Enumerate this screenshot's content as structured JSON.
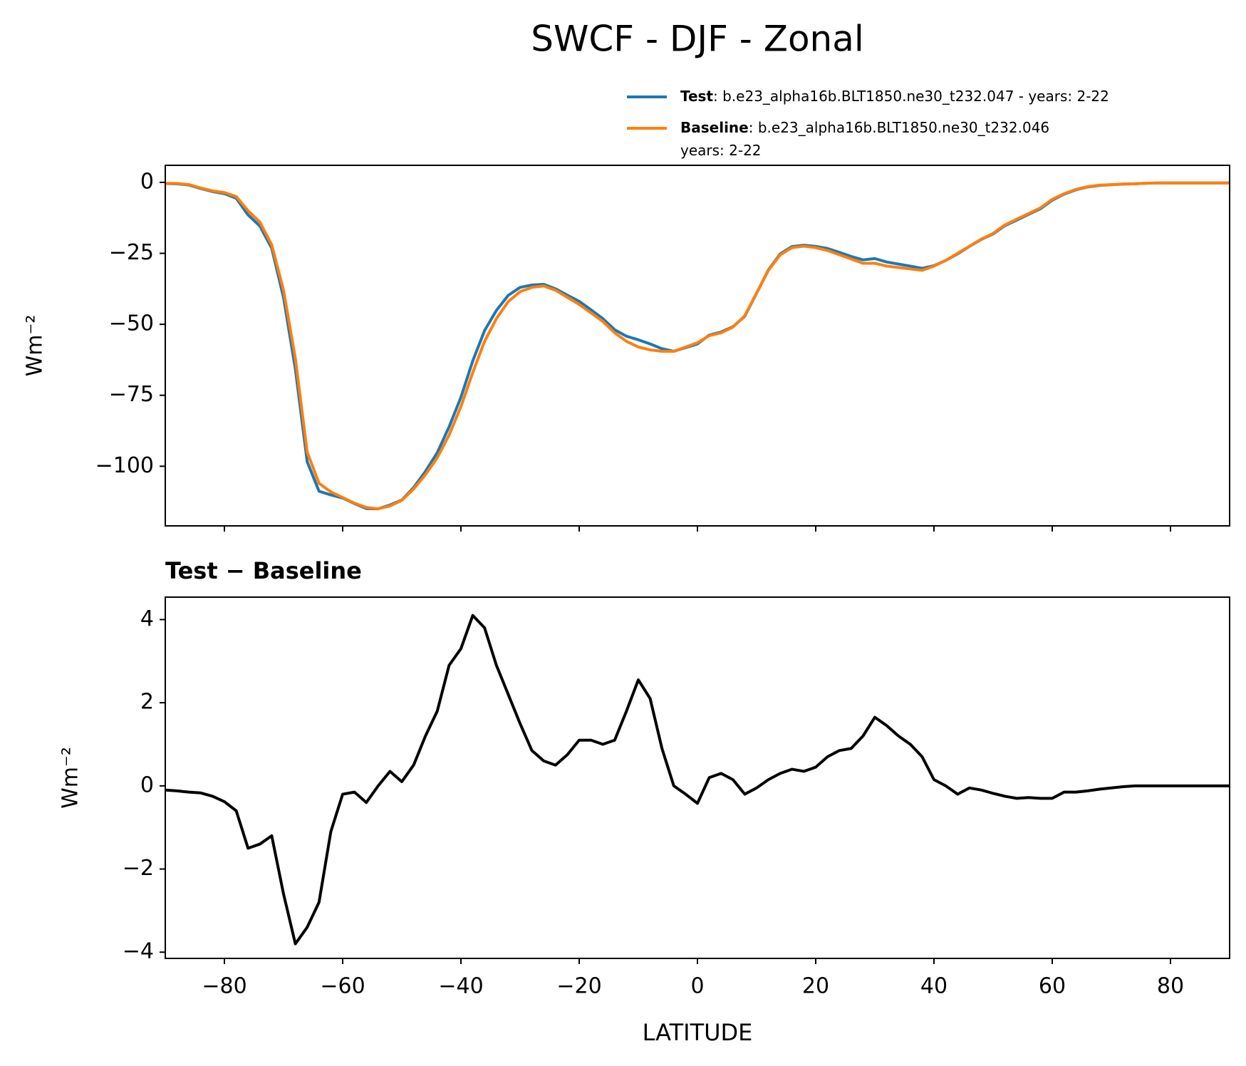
{
  "title": "SWCF - DJF - Zonal",
  "chart_data": [
    {
      "type": "line",
      "ylabel": "Wm⁻²",
      "x": [
        -90,
        -88,
        -86,
        -84,
        -82,
        -80,
        -78,
        -76,
        -74,
        -72,
        -70,
        -68,
        -66,
        -64,
        -62,
        -60,
        -58,
        -56,
        -54,
        -52,
        -50,
        -48,
        -46,
        -44,
        -42,
        -40,
        -38,
        -36,
        -34,
        -32,
        -30,
        -28,
        -26,
        -24,
        -22,
        -20,
        -18,
        -16,
        -14,
        -12,
        -10,
        -8,
        -6,
        -4,
        -2,
        0,
        2,
        4,
        6,
        8,
        10,
        12,
        14,
        16,
        18,
        20,
        22,
        24,
        26,
        28,
        30,
        32,
        34,
        36,
        38,
        40,
        42,
        44,
        46,
        48,
        50,
        52,
        54,
        56,
        58,
        60,
        62,
        64,
        66,
        68,
        70,
        72,
        74,
        76,
        78,
        80,
        82,
        84,
        86,
        88,
        90
      ],
      "series": [
        {
          "name": "Test",
          "legend_text": [
            ": b.e23_alpha16b.BLT1850.ne30_t232.047 - years: 2-22"
          ],
          "color": "#1f77b4",
          "values": [
            -0.4,
            -0.52,
            -0.95,
            -2.17,
            -3.25,
            -3.98,
            -5.6,
            -11.5,
            -15.4,
            -23.2,
            -40.6,
            -65.8,
            -98.4,
            -108.8,
            -110.1,
            -111.2,
            -113.15,
            -114.9,
            -115,
            -113.65,
            -111.9,
            -107.5,
            -101.8,
            -95.2,
            -86.1,
            -75.7,
            -62.9,
            -52.2,
            -45.1,
            -39.8,
            -37,
            -36.15,
            -35.9,
            -37.5,
            -39.75,
            -41.9,
            -44.9,
            -48,
            -51.9,
            -54.2,
            -55.45,
            -56.9,
            -58.6,
            -59.5,
            -58.2,
            -56.92,
            -53.8,
            -52.7,
            -50.85,
            -47.2,
            -39.05,
            -30.85,
            -25.2,
            -22.6,
            -22.15,
            -22.55,
            -23.3,
            -24.65,
            -26.1,
            -27.3,
            -26.85,
            -28.05,
            -28.8,
            -29.5,
            -30.3,
            -29.35,
            -27.5,
            -25.2,
            -22.55,
            -20.1,
            -18.18,
            -15.25,
            -13.3,
            -11.28,
            -9.3,
            -6.3,
            -4.15,
            -2.65,
            -1.62,
            -1.08,
            -0.85,
            -0.62,
            -0.5,
            -0.3,
            -0.2,
            -0.2,
            -0.2,
            -0.2,
            -0.2,
            -0.2,
            -0.2
          ]
        },
        {
          "name": "Baseline",
          "legend_text": [
            ": b.e23_alpha16b.BLT1850.ne30_t232.046",
            "years: 2-22"
          ],
          "color": "#ff7f0e",
          "values": [
            -0.3,
            -0.4,
            -0.8,
            -2,
            -3,
            -3.6,
            -5,
            -10,
            -14,
            -22,
            -38,
            -62,
            -95,
            -106,
            -109,
            -111,
            -113,
            -114.5,
            -115,
            -114,
            -112,
            -108,
            -103,
            -97,
            -89,
            -79,
            -67,
            -56,
            -48,
            -42,
            -38.5,
            -37,
            -36.5,
            -38,
            -40.5,
            -43,
            -46,
            -49,
            -53,
            -56,
            -58,
            -59,
            -59.5,
            -59.5,
            -58,
            -56.5,
            -54,
            -53,
            -51,
            -47,
            -39,
            -31,
            -25.5,
            -23,
            -22.5,
            -23,
            -24,
            -25.5,
            -27,
            -28.5,
            -28.5,
            -29.5,
            -30,
            -30.5,
            -31,
            -29.5,
            -27.5,
            -25,
            -22.5,
            -20,
            -18,
            -15,
            -13,
            -11,
            -9,
            -6,
            -4,
            -2.5,
            -1.5,
            -1,
            -0.8,
            -0.6,
            -0.5,
            -0.3,
            -0.2,
            -0.2,
            -0.2,
            -0.2,
            -0.2,
            -0.2,
            -0.2
          ]
        }
      ],
      "xlim": [
        -90,
        90
      ],
      "ylim": [
        -121,
        6
      ],
      "xticks": [
        -80,
        -60,
        -40,
        -20,
        0,
        20,
        40,
        60,
        80
      ],
      "show_xticklabels": false,
      "yticks": [
        {
          "value": -100,
          "label": "−100"
        },
        {
          "value": -75,
          "label": "−75"
        },
        {
          "value": -50,
          "label": "−50"
        },
        {
          "value": -25,
          "label": "−25"
        },
        0
      ]
    },
    {
      "type": "line",
      "title": "Test − Baseline",
      "ylabel": "Wm⁻²",
      "xlabel": "LATITUDE",
      "color": "#000000",
      "x": [
        -90,
        -88,
        -86,
        -84,
        -82,
        -80,
        -78,
        -76,
        -74,
        -72,
        -70,
        -68,
        -66,
        -64,
        -62,
        -60,
        -58,
        -56,
        -54,
        -52,
        -50,
        -48,
        -46,
        -44,
        -42,
        -40,
        -38,
        -36,
        -34,
        -32,
        -30,
        -28,
        -26,
        -24,
        -22,
        -20,
        -18,
        -16,
        -14,
        -12,
        -10,
        -8,
        -6,
        -4,
        -2,
        0,
        2,
        4,
        6,
        8,
        10,
        12,
        14,
        16,
        18,
        20,
        22,
        24,
        26,
        28,
        30,
        32,
        34,
        36,
        38,
        40,
        42,
        44,
        46,
        48,
        50,
        52,
        54,
        56,
        58,
        60,
        62,
        64,
        66,
        68,
        70,
        72,
        74,
        76,
        78,
        80,
        82,
        84,
        86,
        88,
        90
      ],
      "values": [
        -0.1,
        -0.12,
        -0.15,
        -0.17,
        -0.25,
        -0.38,
        -0.6,
        -1.5,
        -1.4,
        -1.2,
        -2.6,
        -3.8,
        -3.4,
        -2.8,
        -1.1,
        -0.2,
        -0.15,
        -0.4,
        0,
        0.35,
        0.1,
        0.5,
        1.2,
        1.8,
        2.9,
        3.3,
        4.1,
        3.8,
        2.9,
        2.2,
        1.5,
        0.85,
        0.6,
        0.5,
        0.75,
        1.1,
        1.1,
        1,
        1.1,
        1.8,
        2.55,
        2.1,
        0.9,
        0,
        -0.2,
        -0.42,
        0.2,
        0.3,
        0.15,
        -0.2,
        -0.05,
        0.15,
        0.3,
        0.4,
        0.35,
        0.45,
        0.7,
        0.85,
        0.9,
        1.2,
        1.65,
        1.45,
        1.2,
        1,
        0.7,
        0.15,
        0,
        -0.2,
        -0.05,
        -0.1,
        -0.18,
        -0.25,
        -0.3,
        -0.28,
        -0.3,
        -0.3,
        -0.15,
        -0.15,
        -0.12,
        -0.08,
        -0.05,
        -0.02,
        0,
        0,
        0,
        0,
        0,
        0,
        0,
        0,
        0
      ],
      "xlim": [
        -90,
        90
      ],
      "ylim": [
        -4.15,
        4.54
      ],
      "xticks": [
        {
          "value": -80,
          "label": "−80"
        },
        {
          "value": -60,
          "label": "−60"
        },
        {
          "value": -40,
          "label": "−40"
        },
        {
          "value": -20,
          "label": "−20"
        },
        0,
        20,
        40,
        60,
        80
      ],
      "show_xticklabels": true,
      "yticks": [
        {
          "value": -4,
          "label": "−4"
        },
        {
          "value": -2,
          "label": "−2"
        },
        0,
        2,
        4
      ]
    }
  ]
}
